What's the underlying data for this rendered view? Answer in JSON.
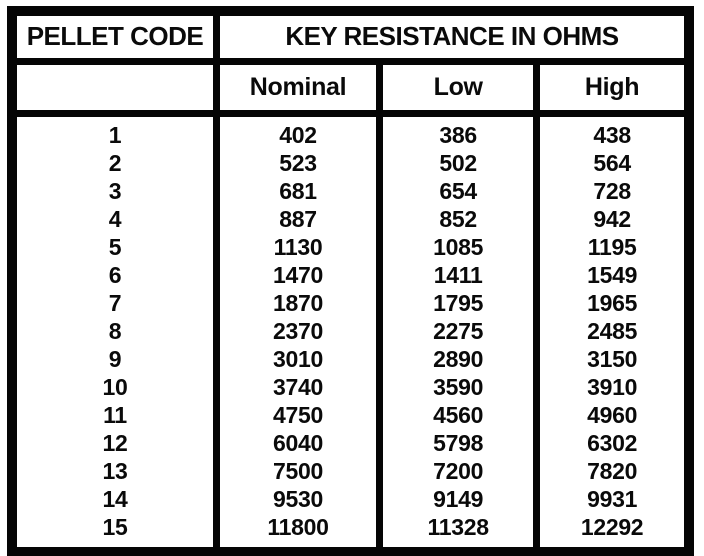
{
  "table": {
    "header": {
      "pellet_code": "PELLET CODE",
      "key_resistance": "KEY RESISTANCE IN OHMS",
      "nominal": "Nominal",
      "low": "Low",
      "high": "High"
    },
    "rows": [
      {
        "code": "1",
        "nominal": "402",
        "low": "386",
        "high": "438"
      },
      {
        "code": "2",
        "nominal": "523",
        "low": "502",
        "high": "564"
      },
      {
        "code": "3",
        "nominal": "681",
        "low": "654",
        "high": "728"
      },
      {
        "code": "4",
        "nominal": "887",
        "low": "852",
        "high": "942"
      },
      {
        "code": "5",
        "nominal": "1130",
        "low": "1085",
        "high": "1195"
      },
      {
        "code": "6",
        "nominal": "1470",
        "low": "1411",
        "high": "1549"
      },
      {
        "code": "7",
        "nominal": "1870",
        "low": "1795",
        "high": "1965"
      },
      {
        "code": "8",
        "nominal": "2370",
        "low": "2275",
        "high": "2485"
      },
      {
        "code": "9",
        "nominal": "3010",
        "low": "2890",
        "high": "3150"
      },
      {
        "code": "10",
        "nominal": "3740",
        "low": "3590",
        "high": "3910"
      },
      {
        "code": "11",
        "nominal": "4750",
        "low": "4560",
        "high": "4960"
      },
      {
        "code": "12",
        "nominal": "6040",
        "low": "5798",
        "high": "6302"
      },
      {
        "code": "13",
        "nominal": "7500",
        "low": "7200",
        "high": "7820"
      },
      {
        "code": "14",
        "nominal": "9530",
        "low": "9149",
        "high": "9931"
      },
      {
        "code": "15",
        "nominal": "11800",
        "low": "11328",
        "high": "12292"
      }
    ]
  },
  "colors": {
    "border": "#050505",
    "background": "#ffffff",
    "text": "#0a0a0a"
  }
}
